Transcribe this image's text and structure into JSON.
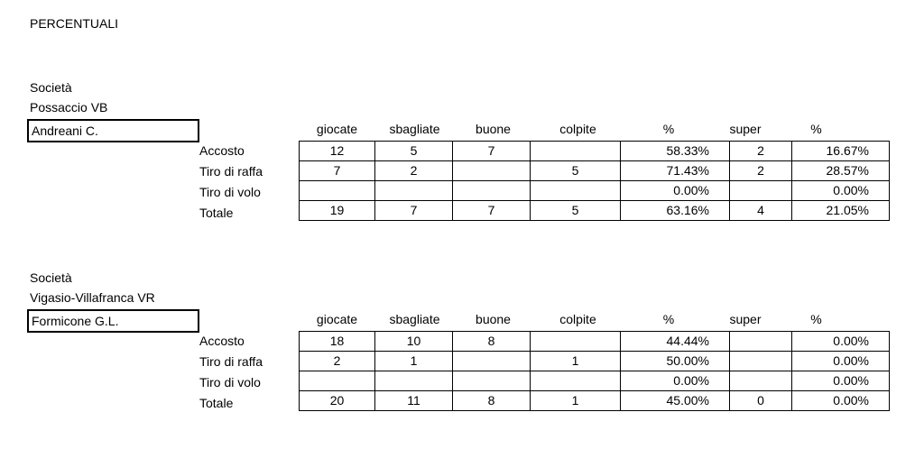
{
  "title": "PERCENTUALI",
  "columns": [
    "giocate",
    "sbagliate",
    "buone",
    "colpite",
    "%",
    "super",
    "%"
  ],
  "sections": [
    {
      "societa_label": "Società",
      "societa": "Possaccio VB",
      "player": "Andreani C.",
      "rows": [
        {
          "label": "Accosto",
          "cells": [
            "12",
            "5",
            "7",
            "",
            "58.33%",
            "2",
            "16.67%"
          ]
        },
        {
          "label": "Tiro di raffa",
          "cells": [
            "7",
            "2",
            "",
            "5",
            "71.43%",
            "2",
            "28.57%"
          ]
        },
        {
          "label": "Tiro di volo",
          "cells": [
            "",
            "",
            "",
            "",
            "0.00%",
            "",
            "0.00%"
          ]
        },
        {
          "label": "Totale",
          "cells": [
            "19",
            "7",
            "7",
            "5",
            "63.16%",
            "4",
            "21.05%"
          ]
        }
      ]
    },
    {
      "societa_label": "Società",
      "societa": "Vigasio-Villafranca VR",
      "player": "Formicone G.L.",
      "rows": [
        {
          "label": "Accosto",
          "cells": [
            "18",
            "10",
            "8",
            "",
            "44.44%",
            "",
            "0.00%"
          ]
        },
        {
          "label": "Tiro di raffa",
          "cells": [
            "2",
            "1",
            "",
            "1",
            "50.00%",
            "",
            "0.00%"
          ]
        },
        {
          "label": "Tiro di volo",
          "cells": [
            "",
            "",
            "",
            "",
            "0.00%",
            "",
            "0.00%"
          ]
        },
        {
          "label": "Totale",
          "cells": [
            "20",
            "11",
            "8",
            "1",
            "45.00%",
            "0",
            "0.00%"
          ]
        }
      ]
    }
  ]
}
